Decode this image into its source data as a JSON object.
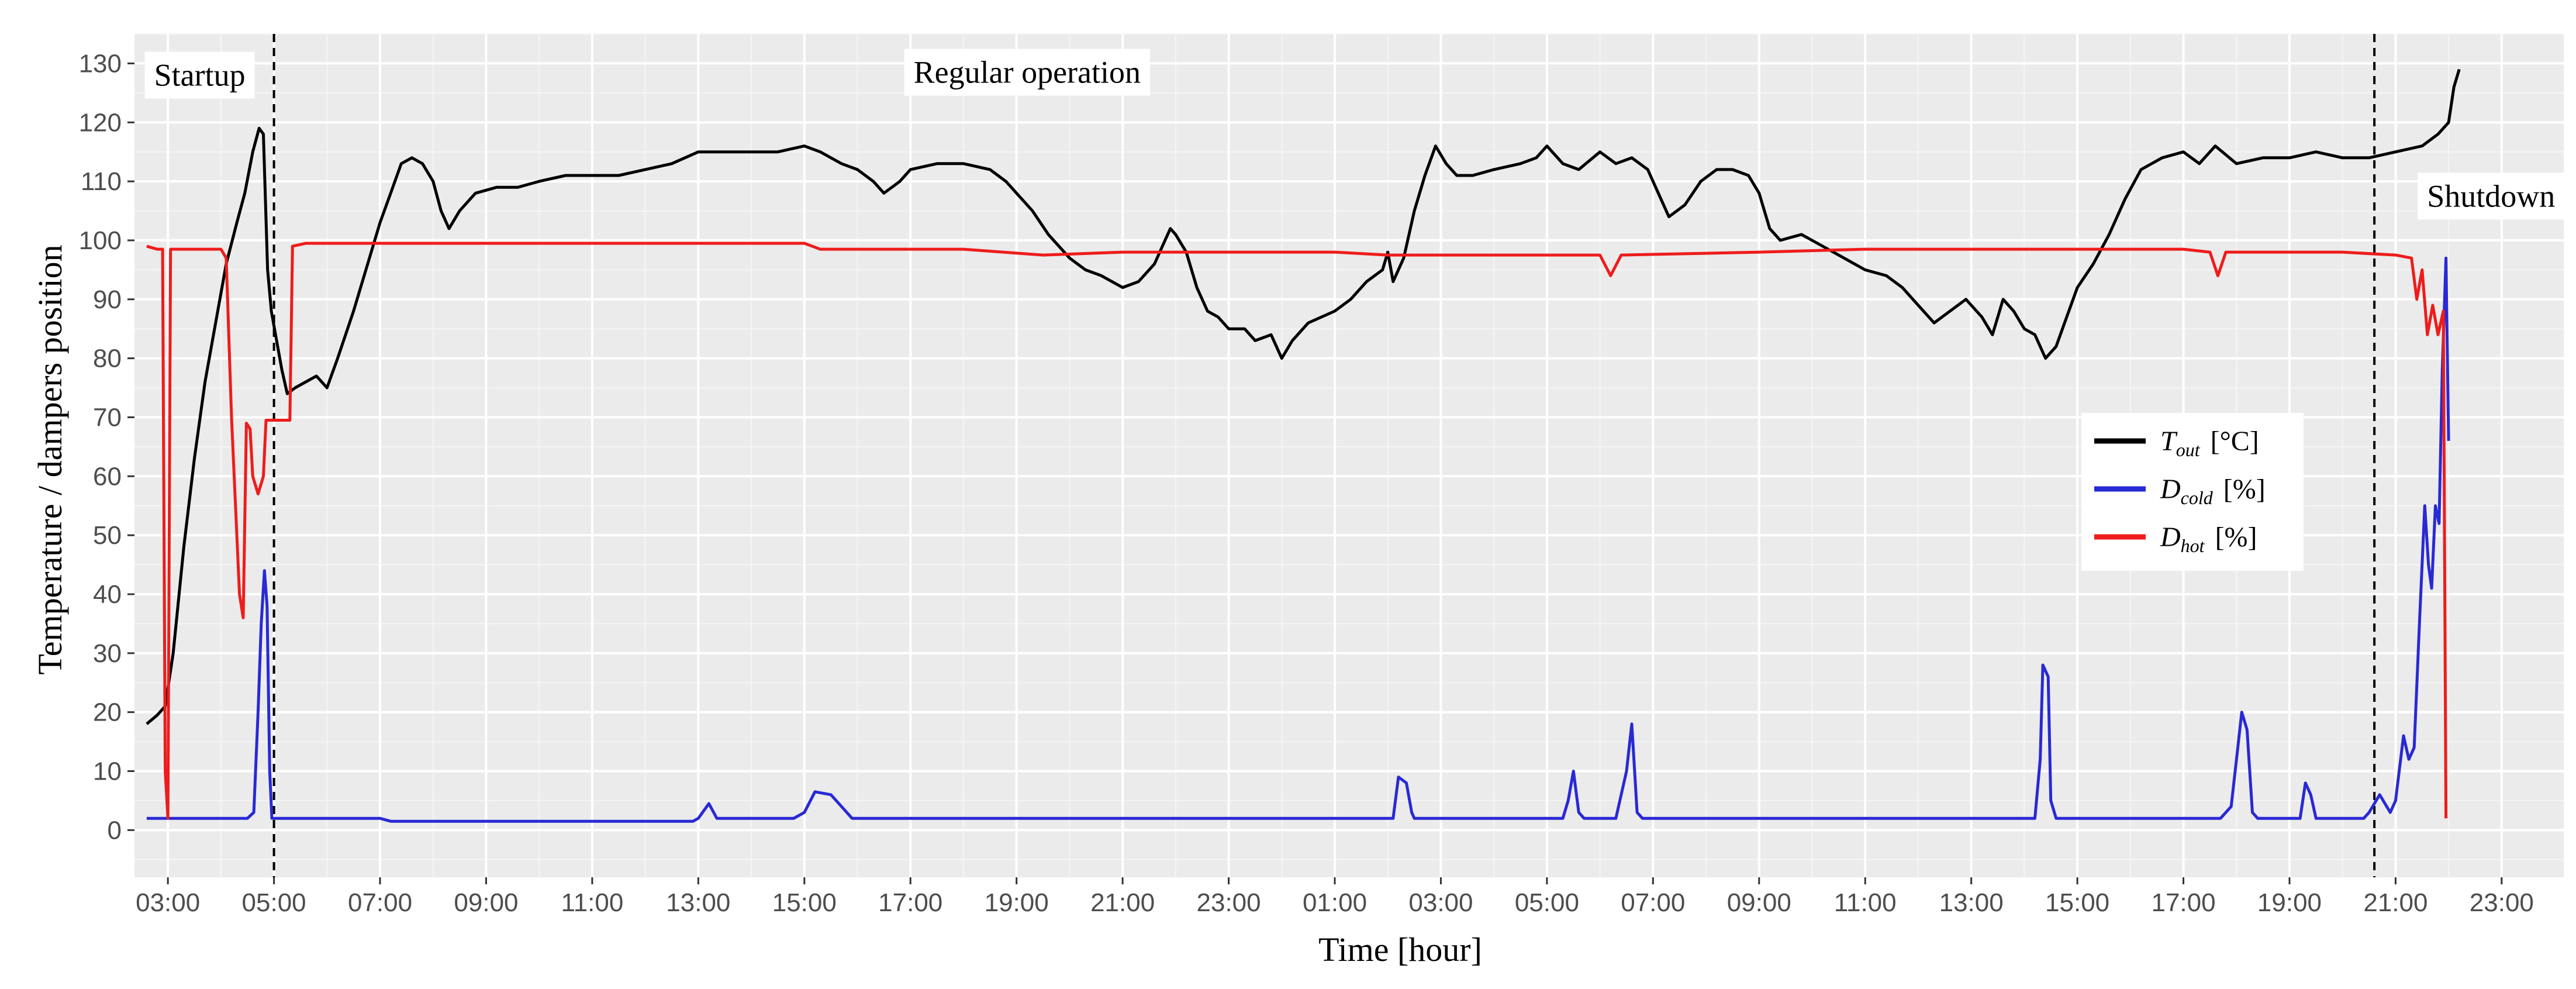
{
  "chart_data": {
    "type": "line",
    "title": "",
    "xlabel": "Time [hour]",
    "ylabel": "Temperature  / dampers position",
    "x_unit": "elapsed hours",
    "xlim": [
      -0.63,
      45.17
    ],
    "ylim": [
      -8,
      135
    ],
    "grid": true,
    "legend_position": "right",
    "x_ticks": [
      {
        "x": 0,
        "label": "03:00"
      },
      {
        "x": 2,
        "label": "05:00"
      },
      {
        "x": 4,
        "label": "07:00"
      },
      {
        "x": 6,
        "label": "09:00"
      },
      {
        "x": 8,
        "label": "11:00"
      },
      {
        "x": 10,
        "label": "13:00"
      },
      {
        "x": 12,
        "label": "15:00"
      },
      {
        "x": 14,
        "label": "17:00"
      },
      {
        "x": 16,
        "label": "19:00"
      },
      {
        "x": 18,
        "label": "21:00"
      },
      {
        "x": 20,
        "label": "23:00"
      },
      {
        "x": 22,
        "label": "01:00"
      },
      {
        "x": 24,
        "label": "03:00"
      },
      {
        "x": 26,
        "label": "05:00"
      },
      {
        "x": 28,
        "label": "07:00"
      },
      {
        "x": 30,
        "label": "09:00"
      },
      {
        "x": 32,
        "label": "11:00"
      },
      {
        "x": 34,
        "label": "13:00"
      },
      {
        "x": 36,
        "label": "15:00"
      },
      {
        "x": 38,
        "label": "17:00"
      },
      {
        "x": 40,
        "label": "19:00"
      },
      {
        "x": 42,
        "label": "21:00"
      },
      {
        "x": 44,
        "label": "23:00"
      }
    ],
    "y_ticks": [
      0,
      10,
      20,
      30,
      40,
      50,
      60,
      70,
      80,
      90,
      100,
      110,
      120,
      130
    ],
    "vlines": [
      2.0,
      41.6
    ],
    "phase_labels": [
      {
        "text": "Startup",
        "x": 0.6,
        "y": 128
      },
      {
        "text": "Regular operation",
        "x": 16.2,
        "y": 128.5
      },
      {
        "text": "Shutdown",
        "x": 43.8,
        "y": 107.5
      }
    ],
    "legend": [
      {
        "symbol": "T",
        "subscript": "out",
        "unit": "[°C]",
        "color": "#000000"
      },
      {
        "symbol": "D",
        "subscript": "cold",
        "unit": "[%]",
        "color": "#2929d6"
      },
      {
        "symbol": "D",
        "subscript": "hot",
        "unit": "[%]",
        "color": "#ee1c1c"
      }
    ],
    "series": [
      {
        "color": "#000000",
        "points": [
          [
            -0.4,
            18
          ],
          [
            -0.2,
            19.5
          ],
          [
            -0.05,
            21
          ],
          [
            0.1,
            30
          ],
          [
            0.3,
            48
          ],
          [
            0.5,
            63
          ],
          [
            0.7,
            76
          ],
          [
            0.9,
            86
          ],
          [
            1.1,
            96
          ],
          [
            1.3,
            103
          ],
          [
            1.45,
            108
          ],
          [
            1.6,
            115
          ],
          [
            1.72,
            119
          ],
          [
            1.8,
            118
          ],
          [
            1.88,
            95
          ],
          [
            1.95,
            88
          ],
          [
            2.05,
            83
          ],
          [
            2.15,
            78
          ],
          [
            2.25,
            74
          ],
          [
            2.4,
            75
          ],
          [
            2.6,
            76
          ],
          [
            2.8,
            77
          ],
          [
            3.0,
            75
          ],
          [
            3.2,
            80
          ],
          [
            3.5,
            88
          ],
          [
            3.8,
            97
          ],
          [
            4.0,
            103
          ],
          [
            4.2,
            108
          ],
          [
            4.4,
            113
          ],
          [
            4.6,
            114
          ],
          [
            4.8,
            113
          ],
          [
            5.0,
            110
          ],
          [
            5.15,
            105
          ],
          [
            5.3,
            102
          ],
          [
            5.5,
            105
          ],
          [
            5.8,
            108
          ],
          [
            6.2,
            109
          ],
          [
            6.6,
            109
          ],
          [
            7.0,
            110
          ],
          [
            7.5,
            111
          ],
          [
            8.0,
            111
          ],
          [
            8.5,
            111
          ],
          [
            9.0,
            112
          ],
          [
            9.5,
            113
          ],
          [
            10.0,
            115
          ],
          [
            10.5,
            115
          ],
          [
            11.0,
            115
          ],
          [
            11.5,
            115
          ],
          [
            12.0,
            116
          ],
          [
            12.3,
            115
          ],
          [
            12.7,
            113
          ],
          [
            13.0,
            112
          ],
          [
            13.3,
            110
          ],
          [
            13.5,
            108
          ],
          [
            13.8,
            110
          ],
          [
            14.0,
            112
          ],
          [
            14.5,
            113
          ],
          [
            15.0,
            113
          ],
          [
            15.5,
            112
          ],
          [
            15.8,
            110
          ],
          [
            16.0,
            108
          ],
          [
            16.3,
            105
          ],
          [
            16.6,
            101
          ],
          [
            17.0,
            97
          ],
          [
            17.3,
            95
          ],
          [
            17.6,
            94
          ],
          [
            18.0,
            92
          ],
          [
            18.3,
            93
          ],
          [
            18.6,
            96
          ],
          [
            18.8,
            100
          ],
          [
            18.9,
            102
          ],
          [
            19.0,
            101
          ],
          [
            19.2,
            98
          ],
          [
            19.4,
            92
          ],
          [
            19.6,
            88
          ],
          [
            19.8,
            87
          ],
          [
            20.0,
            85
          ],
          [
            20.3,
            85
          ],
          [
            20.5,
            83
          ],
          [
            20.8,
            84
          ],
          [
            21.0,
            80
          ],
          [
            21.2,
            83
          ],
          [
            21.5,
            86
          ],
          [
            22.0,
            88
          ],
          [
            22.3,
            90
          ],
          [
            22.6,
            93
          ],
          [
            22.9,
            95
          ],
          [
            23.0,
            98
          ],
          [
            23.1,
            93
          ],
          [
            23.3,
            97
          ],
          [
            23.5,
            105
          ],
          [
            23.7,
            111
          ],
          [
            23.9,
            116
          ],
          [
            24.1,
            113
          ],
          [
            24.3,
            111
          ],
          [
            24.6,
            111
          ],
          [
            25.0,
            112
          ],
          [
            25.5,
            113
          ],
          [
            25.8,
            114
          ],
          [
            26.0,
            116
          ],
          [
            26.3,
            113
          ],
          [
            26.6,
            112
          ],
          [
            27.0,
            115
          ],
          [
            27.3,
            113
          ],
          [
            27.6,
            114
          ],
          [
            27.9,
            112
          ],
          [
            28.1,
            108
          ],
          [
            28.3,
            104
          ],
          [
            28.6,
            106
          ],
          [
            28.9,
            110
          ],
          [
            29.2,
            112
          ],
          [
            29.5,
            112
          ],
          [
            29.8,
            111
          ],
          [
            30.0,
            108
          ],
          [
            30.2,
            102
          ],
          [
            30.4,
            100
          ],
          [
            30.8,
            101
          ],
          [
            31.2,
            99
          ],
          [
            31.6,
            97
          ],
          [
            32.0,
            95
          ],
          [
            32.4,
            94
          ],
          [
            32.7,
            92
          ],
          [
            33.0,
            89
          ],
          [
            33.3,
            86
          ],
          [
            33.6,
            88
          ],
          [
            33.9,
            90
          ],
          [
            34.2,
            87
          ],
          [
            34.4,
            84
          ],
          [
            34.6,
            90
          ],
          [
            34.8,
            88
          ],
          [
            35.0,
            85
          ],
          [
            35.2,
            84
          ],
          [
            35.4,
            80
          ],
          [
            35.6,
            82
          ],
          [
            35.8,
            87
          ],
          [
            36.0,
            92
          ],
          [
            36.3,
            96
          ],
          [
            36.6,
            101
          ],
          [
            36.9,
            107
          ],
          [
            37.2,
            112
          ],
          [
            37.6,
            114
          ],
          [
            38.0,
            115
          ],
          [
            38.3,
            113
          ],
          [
            38.6,
            116
          ],
          [
            39.0,
            113
          ],
          [
            39.5,
            114
          ],
          [
            40.0,
            114
          ],
          [
            40.5,
            115
          ],
          [
            41.0,
            114
          ],
          [
            41.5,
            114
          ],
          [
            42.0,
            115
          ],
          [
            42.5,
            116
          ],
          [
            42.8,
            118
          ],
          [
            43.0,
            120
          ],
          [
            43.1,
            126
          ],
          [
            43.2,
            129
          ]
        ]
      },
      {
        "color": "#2929d6",
        "points": [
          [
            -0.4,
            2
          ],
          [
            1.5,
            2
          ],
          [
            1.62,
            3
          ],
          [
            1.7,
            20
          ],
          [
            1.76,
            35
          ],
          [
            1.82,
            44
          ],
          [
            1.87,
            38
          ],
          [
            1.92,
            10
          ],
          [
            1.96,
            2
          ],
          [
            4.0,
            2
          ],
          [
            4.2,
            1.5
          ],
          [
            5.5,
            1.5
          ],
          [
            5.8,
            1.5
          ],
          [
            9.9,
            1.5
          ],
          [
            10.0,
            2
          ],
          [
            10.2,
            4.5
          ],
          [
            10.35,
            2
          ],
          [
            11.8,
            2
          ],
          [
            12.0,
            3
          ],
          [
            12.2,
            6.5
          ],
          [
            12.5,
            6
          ],
          [
            12.7,
            4
          ],
          [
            12.9,
            2
          ],
          [
            23.1,
            2
          ],
          [
            23.2,
            9
          ],
          [
            23.35,
            8
          ],
          [
            23.45,
            3
          ],
          [
            23.5,
            2
          ],
          [
            26.3,
            2
          ],
          [
            26.4,
            5
          ],
          [
            26.5,
            10
          ],
          [
            26.6,
            3
          ],
          [
            26.7,
            2
          ],
          [
            27.3,
            2
          ],
          [
            27.5,
            10
          ],
          [
            27.6,
            18
          ],
          [
            27.7,
            3
          ],
          [
            27.8,
            2
          ],
          [
            35.2,
            2
          ],
          [
            35.3,
            12
          ],
          [
            35.35,
            28
          ],
          [
            35.45,
            26
          ],
          [
            35.5,
            5
          ],
          [
            35.6,
            2
          ],
          [
            38.7,
            2
          ],
          [
            38.9,
            4
          ],
          [
            39.0,
            12
          ],
          [
            39.1,
            20
          ],
          [
            39.2,
            17
          ],
          [
            39.3,
            3
          ],
          [
            39.4,
            2
          ],
          [
            40.2,
            2
          ],
          [
            40.3,
            8
          ],
          [
            40.4,
            6
          ],
          [
            40.5,
            2
          ],
          [
            41.4,
            2
          ],
          [
            41.5,
            3
          ],
          [
            41.7,
            6
          ],
          [
            41.9,
            3
          ],
          [
            42.0,
            5
          ],
          [
            42.15,
            16
          ],
          [
            42.25,
            12
          ],
          [
            42.35,
            14
          ],
          [
            42.45,
            35
          ],
          [
            42.55,
            55
          ],
          [
            42.62,
            45
          ],
          [
            42.68,
            41
          ],
          [
            42.75,
            55
          ],
          [
            42.82,
            52
          ],
          [
            42.88,
            78
          ],
          [
            42.95,
            97
          ],
          [
            43.0,
            66
          ]
        ]
      },
      {
        "color": "#ee1c1c",
        "points": [
          [
            -0.4,
            99
          ],
          [
            -0.2,
            98.5
          ],
          [
            -0.1,
            98.5
          ],
          [
            -0.05,
            10
          ],
          [
            0,
            2
          ],
          [
            0.05,
            98.5
          ],
          [
            0.4,
            98.5
          ],
          [
            1.0,
            98.5
          ],
          [
            1.1,
            97
          ],
          [
            1.2,
            70
          ],
          [
            1.3,
            50
          ],
          [
            1.35,
            40
          ],
          [
            1.42,
            36
          ],
          [
            1.48,
            69
          ],
          [
            1.55,
            68
          ],
          [
            1.6,
            60
          ],
          [
            1.7,
            57
          ],
          [
            1.8,
            60
          ],
          [
            1.85,
            69.5
          ],
          [
            2.3,
            69.5
          ],
          [
            2.35,
            99
          ],
          [
            2.6,
            99.5
          ],
          [
            5.0,
            99.5
          ],
          [
            8.0,
            99.5
          ],
          [
            12.0,
            99.5
          ],
          [
            12.3,
            98.5
          ],
          [
            15.0,
            98.5
          ],
          [
            16.5,
            97.5
          ],
          [
            18.0,
            98
          ],
          [
            22.0,
            98
          ],
          [
            23.0,
            97.5
          ],
          [
            27.0,
            97.5
          ],
          [
            27.2,
            94
          ],
          [
            27.4,
            97.5
          ],
          [
            30.0,
            98
          ],
          [
            32.0,
            98.5
          ],
          [
            35.0,
            98.5
          ],
          [
            38.0,
            98.5
          ],
          [
            38.5,
            98
          ],
          [
            38.65,
            94
          ],
          [
            38.8,
            98
          ],
          [
            41.0,
            98
          ],
          [
            42.0,
            97.5
          ],
          [
            42.3,
            97
          ],
          [
            42.4,
            90
          ],
          [
            42.5,
            95
          ],
          [
            42.6,
            84
          ],
          [
            42.7,
            89
          ],
          [
            42.8,
            84
          ],
          [
            42.9,
            88
          ],
          [
            42.95,
            2
          ]
        ]
      }
    ]
  }
}
